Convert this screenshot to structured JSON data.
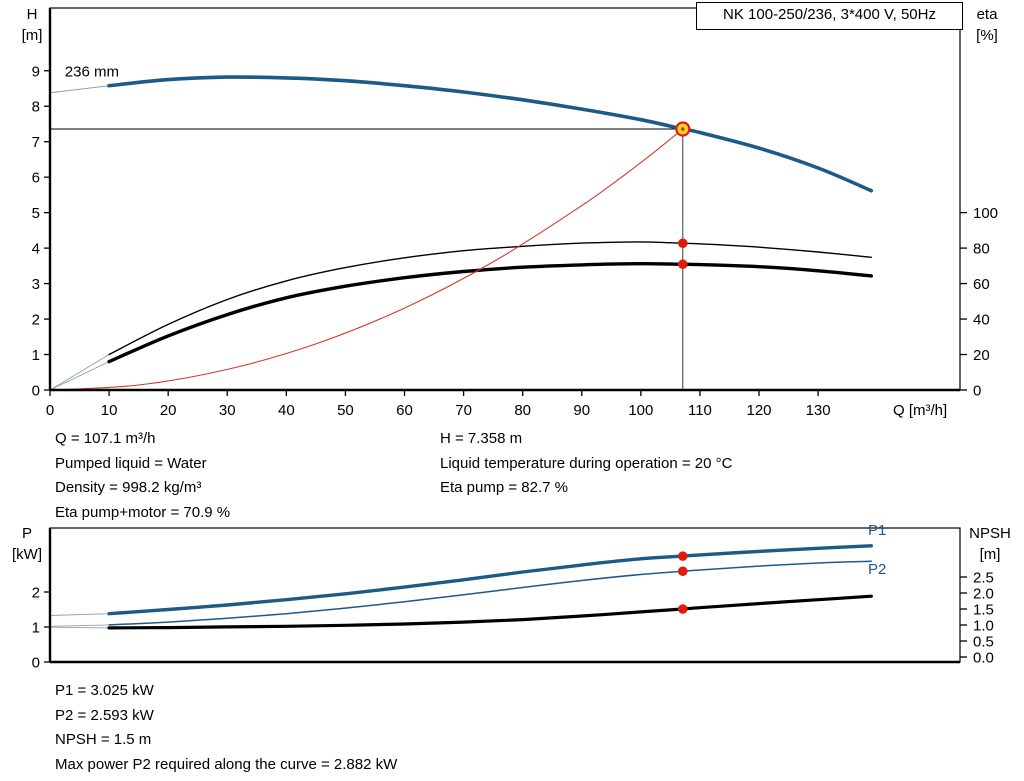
{
  "header": {
    "title_box": "NK 100-250/236, 3*400 V, 50Hz"
  },
  "colors": {
    "blue": "#1e5a86",
    "black": "#000000",
    "red_curve": "#d43a2f",
    "marker_red": "#e01b10",
    "marker_yellow": "#ffd21f",
    "gray": "#90a0ac"
  },
  "axis_labels": {
    "h": "H",
    "h_unit": "[m]",
    "eta": "eta",
    "eta_unit": "[%]",
    "q": "Q [m³/h]",
    "p": "P",
    "p_unit": "[kW]",
    "npsh": "NPSH",
    "npsh_unit": "[m]"
  },
  "info_top": {
    "col1": [
      "Q = 107.1 m³/h",
      "Pumped liquid = Water",
      "Density = 998.2 kg/m³",
      "Eta pump+motor = 70.9 %"
    ],
    "col2": [
      "H = 7.358 m",
      "Liquid temperature during operation = 20 °C",
      "Eta pump = 82.7 %"
    ]
  },
  "info_bottom": {
    "lines": [
      "P1 = 3.025 kW",
      "P2 = 2.593 kW",
      "NPSH = 1.5 m",
      "Max power P2 required along the curve = 2.882 kW"
    ]
  },
  "chart_data": [
    {
      "type": "line",
      "title": "NK 100-250/236, 3*400 V, 50Hz",
      "xlabel": "Q [m³/h]",
      "x": {
        "min": 0,
        "max": 154,
        "ticks": [
          0,
          10,
          20,
          30,
          40,
          50,
          60,
          70,
          80,
          90,
          100,
          110,
          120,
          130
        ]
      },
      "y_left": {
        "label": "H [m]",
        "min": 0,
        "max": 10.77,
        "ticks": [
          0,
          1,
          2,
          3,
          4,
          5,
          6,
          7,
          8,
          9
        ]
      },
      "y_right": {
        "label": "eta [%]",
        "min": 0,
        "max": 215,
        "ticks": [
          0,
          20,
          40,
          60,
          80,
          100
        ]
      },
      "duty_point": {
        "Q": 107.1,
        "H": 7.358,
        "eta_pump": 82.7,
        "eta_pump_motor": 70.9
      },
      "series": [
        {
          "name": "head-lead",
          "axis": "left",
          "color": "gray",
          "width": 1,
          "points": [
            [
              0,
              8.38
            ],
            [
              10,
              8.58
            ]
          ]
        },
        {
          "name": "head-236mm",
          "axis": "left",
          "color": "blue",
          "width": 3.6,
          "points": [
            [
              10,
              8.58
            ],
            [
              20,
              8.75
            ],
            [
              30,
              8.82
            ],
            [
              40,
              8.8
            ],
            [
              50,
              8.72
            ],
            [
              60,
              8.58
            ],
            [
              70,
              8.4
            ],
            [
              80,
              8.18
            ],
            [
              90,
              7.92
            ],
            [
              100,
              7.62
            ],
            [
              107.1,
              7.358
            ],
            [
              110,
              7.26
            ],
            [
              120,
              6.82
            ],
            [
              130,
              6.26
            ],
            [
              139,
              5.62
            ]
          ]
        },
        {
          "name": "eta-pump-lead",
          "axis": "right",
          "color": "gray",
          "width": 0.9,
          "points": [
            [
              0,
              0
            ],
            [
              10,
              20
            ]
          ]
        },
        {
          "name": "eta-pump",
          "axis": "right",
          "color": "black",
          "width": 1.4,
          "points": [
            [
              10,
              20
            ],
            [
              20,
              37
            ],
            [
              30,
              51
            ],
            [
              40,
              61.5
            ],
            [
              50,
              69
            ],
            [
              60,
              74.5
            ],
            [
              70,
              78.5
            ],
            [
              80,
              81
            ],
            [
              90,
              82.8
            ],
            [
              100,
              83.5
            ],
            [
              107.1,
              82.7
            ],
            [
              110,
              82.4
            ],
            [
              120,
              80.5
            ],
            [
              130,
              77.8
            ],
            [
              139,
              74.8
            ]
          ]
        },
        {
          "name": "eta-pump-motor-lead",
          "axis": "right",
          "color": "gray",
          "width": 0.9,
          "points": [
            [
              0,
              0
            ],
            [
              10,
              16
            ]
          ]
        },
        {
          "name": "eta-pump-motor",
          "axis": "right",
          "color": "black",
          "width": 3.4,
          "points": [
            [
              10,
              16
            ],
            [
              20,
              30.5
            ],
            [
              30,
              42.5
            ],
            [
              40,
              52
            ],
            [
              50,
              58.5
            ],
            [
              60,
              63.3
            ],
            [
              70,
              66.8
            ],
            [
              80,
              69.2
            ],
            [
              90,
              70.5
            ],
            [
              100,
              71.2
            ],
            [
              107.1,
              70.9
            ],
            [
              110,
              70.7
            ],
            [
              120,
              69.5
            ],
            [
              130,
              67.2
            ],
            [
              139,
              64.3
            ]
          ]
        },
        {
          "name": "system-curve",
          "axis": "left",
          "color": "red_curve",
          "width": 1.1,
          "points": [
            [
              0,
              0
            ],
            [
              15,
              0.14
            ],
            [
              30,
              0.58
            ],
            [
              45,
              1.3
            ],
            [
              60,
              2.31
            ],
            [
              75,
              3.61
            ],
            [
              90,
              5.2
            ],
            [
              100,
              6.41
            ],
            [
              107.1,
              7.358
            ]
          ]
        }
      ],
      "guides": [
        {
          "type": "h",
          "q0": 0,
          "q1": 107.1,
          "v": 7.358
        },
        {
          "type": "v",
          "q": 107.1,
          "v0": 0,
          "v1": 7.358
        }
      ],
      "markers": [
        {
          "q": 107.1,
          "v": 7.358,
          "axis": "left",
          "kind": "duty"
        },
        {
          "q": 107.1,
          "v": 82.7,
          "axis": "right",
          "kind": "dot"
        },
        {
          "q": 107.1,
          "v": 70.9,
          "axis": "right",
          "kind": "dot"
        }
      ],
      "labels": [
        {
          "text": "236 mm",
          "q": 2.5,
          "v": 8.98,
          "axis": "left",
          "anchor": "start",
          "color": "black"
        }
      ]
    },
    {
      "type": "line",
      "xlabel": "",
      "x": {
        "min": 0,
        "max": 154,
        "ticks": []
      },
      "y_left": {
        "label": "P [kW]",
        "min": 0,
        "max": 3.83,
        "ticks": [
          0,
          1,
          2
        ]
      },
      "y_right": {
        "label": "NPSH [m]",
        "min": 0,
        "max": 4.0,
        "ticks": [
          0,
          0.5,
          1,
          1.5,
          2,
          2.5
        ],
        "tick_labels": [
          "0.0",
          "0.5",
          "1.0",
          "1.5",
          "2.0",
          "2.5"
        ]
      },
      "duty_point": {
        "Q": 107.1,
        "P1": 3.025,
        "P2": 2.593,
        "NPSH": 1.5
      },
      "series": [
        {
          "name": "p1-lead",
          "axis": "left",
          "color": "gray",
          "width": 0.9,
          "points": [
            [
              0,
              1.33
            ],
            [
              10,
              1.38
            ]
          ]
        },
        {
          "name": "p1",
          "axis": "left",
          "color": "blue",
          "width": 3.4,
          "points": [
            [
              10,
              1.38
            ],
            [
              20,
              1.5
            ],
            [
              30,
              1.63
            ],
            [
              40,
              1.78
            ],
            [
              50,
              1.95
            ],
            [
              60,
              2.14
            ],
            [
              70,
              2.35
            ],
            [
              80,
              2.57
            ],
            [
              90,
              2.77
            ],
            [
              100,
              2.95
            ],
            [
              107.1,
              3.025
            ],
            [
              110,
              3.06
            ],
            [
              120,
              3.16
            ],
            [
              130,
              3.25
            ],
            [
              139,
              3.32
            ]
          ]
        },
        {
          "name": "p2-lead",
          "axis": "left",
          "color": "gray",
          "width": 0.9,
          "points": [
            [
              0,
              1.02
            ],
            [
              10,
              1.06
            ]
          ]
        },
        {
          "name": "p2",
          "axis": "left",
          "color": "blue",
          "width": 1.5,
          "points": [
            [
              10,
              1.06
            ],
            [
              20,
              1.14
            ],
            [
              30,
              1.25
            ],
            [
              40,
              1.38
            ],
            [
              50,
              1.54
            ],
            [
              60,
              1.72
            ],
            [
              70,
              1.92
            ],
            [
              80,
              2.13
            ],
            [
              90,
              2.33
            ],
            [
              100,
              2.5
            ],
            [
              107.1,
              2.593
            ],
            [
              110,
              2.63
            ],
            [
              120,
              2.74
            ],
            [
              130,
              2.83
            ],
            [
              139,
              2.88
            ]
          ]
        },
        {
          "name": "npsh-lead",
          "axis": "right",
          "color": "gray",
          "width": 0.9,
          "points": [
            [
              0,
              0.93
            ],
            [
              10,
              0.91
            ]
          ]
        },
        {
          "name": "npsh",
          "axis": "right",
          "color": "black",
          "width": 3.2,
          "points": [
            [
              10,
              0.91
            ],
            [
              20,
              0.92
            ],
            [
              30,
              0.94
            ],
            [
              40,
              0.96
            ],
            [
              50,
              0.99
            ],
            [
              60,
              1.03
            ],
            [
              70,
              1.09
            ],
            [
              80,
              1.17
            ],
            [
              90,
              1.28
            ],
            [
              100,
              1.41
            ],
            [
              107.1,
              1.5
            ],
            [
              110,
              1.54
            ],
            [
              120,
              1.67
            ],
            [
              130,
              1.79
            ],
            [
              139,
              1.9
            ]
          ]
        }
      ],
      "guides": [],
      "markers": [
        {
          "q": 107.1,
          "v": 3.025,
          "axis": "left",
          "kind": "dot"
        },
        {
          "q": 107.1,
          "v": 2.593,
          "axis": "left",
          "kind": "dot"
        },
        {
          "q": 107.1,
          "v": 1.5,
          "axis": "right",
          "kind": "dot"
        }
      ],
      "labels": [
        {
          "text": "P1",
          "q": 140,
          "v": 3.77,
          "axis": "left",
          "anchor": "middle",
          "color": "blue"
        },
        {
          "text": "P2",
          "q": 140,
          "v": 2.66,
          "axis": "left",
          "anchor": "middle",
          "color": "blue"
        }
      ]
    }
  ]
}
